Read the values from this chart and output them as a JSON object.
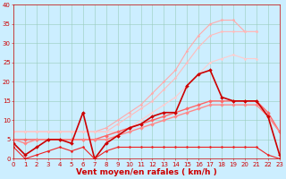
{
  "xlabel": "Vent moyen/en rafales ( km/h )",
  "background_color": "#cceeff",
  "grid_color": "#99ccbb",
  "x": [
    0,
    1,
    2,
    3,
    4,
    5,
    6,
    7,
    8,
    9,
    10,
    11,
    12,
    13,
    14,
    15,
    16,
    17,
    18,
    19,
    20,
    21,
    22,
    23
  ],
  "series": [
    {
      "name": "lightest_pink_upper",
      "color": "#ffaaaa",
      "lw": 0.8,
      "marker": "D",
      "ms": 1.5,
      "y": [
        7,
        7,
        7,
        7,
        7,
        7,
        7,
        7,
        8,
        10,
        12,
        14,
        17,
        20,
        23,
        28,
        32,
        35,
        36,
        36,
        33,
        33,
        null,
        null
      ]
    },
    {
      "name": "light_pink_upper2",
      "color": "#ffbbbb",
      "lw": 0.8,
      "marker": "D",
      "ms": 1.5,
      "y": [
        7,
        7,
        7,
        7,
        7,
        7,
        7,
        7,
        7,
        9,
        11,
        13,
        15,
        18,
        21,
        25,
        29,
        32,
        33,
        33,
        33,
        33,
        null,
        null
      ]
    },
    {
      "name": "light_pink_lower",
      "color": "#ffcccc",
      "lw": 0.8,
      "marker": "D",
      "ms": 1.5,
      "y": [
        7,
        7,
        7,
        7,
        7,
        7,
        7,
        7,
        7,
        7,
        8,
        10,
        12,
        14,
        16,
        19,
        22,
        25,
        26,
        27,
        26,
        26,
        null,
        null
      ]
    },
    {
      "name": "medium_red_upper",
      "color": "#ff6666",
      "lw": 1.0,
      "marker": "D",
      "ms": 2.0,
      "y": [
        5,
        5,
        5,
        5,
        5,
        5,
        5,
        5,
        6,
        7,
        8,
        9,
        10,
        11,
        12,
        13,
        14,
        15,
        15,
        15,
        15,
        15,
        12,
        7
      ]
    },
    {
      "name": "medium_red_lower",
      "color": "#ff8888",
      "lw": 1.0,
      "marker": "D",
      "ms": 2.0,
      "y": [
        5,
        4,
        5,
        5,
        5,
        5,
        5,
        5,
        5,
        6,
        7,
        8,
        9,
        10,
        11,
        12,
        13,
        14,
        14,
        14,
        14,
        14,
        11,
        7
      ]
    },
    {
      "name": "dark_red_jagged",
      "color": "#cc0000",
      "lw": 1.2,
      "marker": "D",
      "ms": 2.0,
      "y": [
        4,
        1,
        3,
        5,
        5,
        4,
        12,
        0,
        4,
        6,
        8,
        9,
        11,
        12,
        12,
        19,
        22,
        23,
        16,
        15,
        15,
        15,
        11,
        1
      ]
    },
    {
      "name": "dark_red_flat",
      "color": "#ee2222",
      "lw": 0.8,
      "marker": "D",
      "ms": 1.5,
      "y": [
        3,
        0,
        1,
        2,
        3,
        2,
        3,
        0,
        2,
        3,
        3,
        3,
        3,
        3,
        3,
        3,
        3,
        3,
        3,
        3,
        3,
        3,
        1,
        0
      ]
    }
  ],
  "xlim": [
    0,
    23
  ],
  "ylim": [
    0,
    40
  ],
  "yticks": [
    0,
    5,
    10,
    15,
    20,
    25,
    30,
    35,
    40
  ],
  "xticks": [
    0,
    1,
    2,
    3,
    4,
    5,
    6,
    7,
    8,
    9,
    10,
    11,
    12,
    13,
    14,
    15,
    16,
    17,
    18,
    19,
    20,
    21,
    22,
    23
  ],
  "xlabel_color": "#cc0000",
  "tick_color": "#cc0000",
  "tick_fontsize": 5.0,
  "xlabel_fontsize": 6.5
}
